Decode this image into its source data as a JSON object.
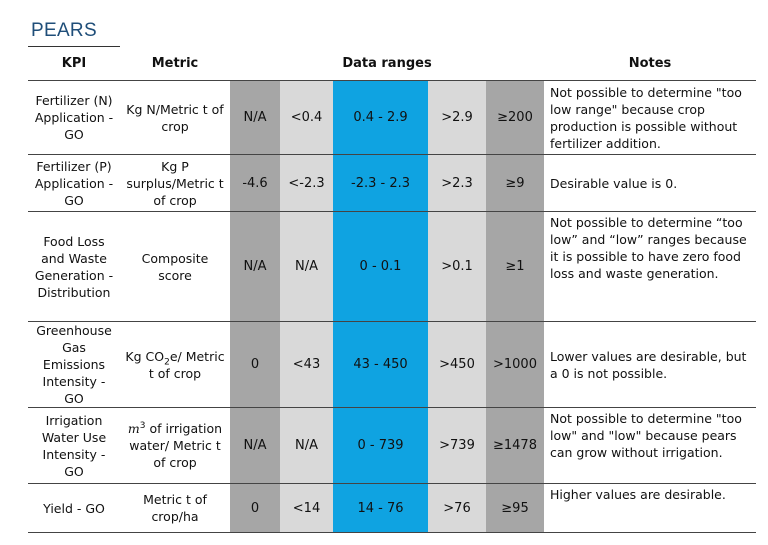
{
  "title": "PEARS",
  "headers": {
    "kpi": "KPI",
    "metric": "Metric",
    "ranges": "Data ranges",
    "notes": "Notes"
  },
  "colors": {
    "dark_gray": "#a6a6a6",
    "light_gray": "#d9d9d9",
    "blue": "#0fa3e1",
    "title": "#1f4e79"
  },
  "rows": [
    {
      "kpi": "Fertilizer (N) Application - GO",
      "metric": "Kg N/Metric t of crop",
      "ranges": [
        "N/A",
        "<0.4",
        "0.4 - 2.9",
        ">2.9",
        "≥200"
      ],
      "notes": "Not possible to determine \"too low range\" because crop production is possible without fertilizer addition."
    },
    {
      "kpi": "Fertilizer (P) Application - GO",
      "metric": "Kg P surplus/Metric t of crop",
      "ranges": [
        "-4.6",
        "<-2.3",
        "-2.3 - 2.3",
        ">2.3",
        "≥9"
      ],
      "notes": "Desirable value is 0."
    },
    {
      "kpi": "Food Loss and Waste Generation - Distribution",
      "metric": "Composite score",
      "ranges": [
        "N/A",
        "N/A",
        "0 - 0.1",
        ">0.1",
        "≥1"
      ],
      "notes": "Not possible to determine “too low” and “low” ranges because it is possible to have zero food loss and waste generation."
    },
    {
      "kpi": "Greenhouse Gas Emissions Intensity - GO",
      "metric_pre": "Kg CO",
      "metric_sub": "2",
      "metric_post": "e/ Metric t of crop",
      "ranges": [
        "0",
        "<43",
        "43 - 450",
        ">450",
        ">1000"
      ],
      "notes": "Lower values are desirable, but a 0 is not possible."
    },
    {
      "kpi": "Irrigation Water Use Intensity - GO",
      "metric_m": "m",
      "metric_sup": "3",
      "metric_post": " of irrigation water/ Metric t of crop",
      "ranges": [
        "N/A",
        "N/A",
        "0 - 739",
        ">739",
        "≥1478"
      ],
      "notes": "Not possible to determine \"too low\" and \"low\" because pears can grow without irrigation."
    },
    {
      "kpi": "Yield - GO",
      "metric": "Metric t of crop/ha",
      "ranges": [
        "0",
        "<14",
        "14 - 76",
        ">76",
        "≥95"
      ],
      "notes": "Higher values are desirable."
    }
  ]
}
